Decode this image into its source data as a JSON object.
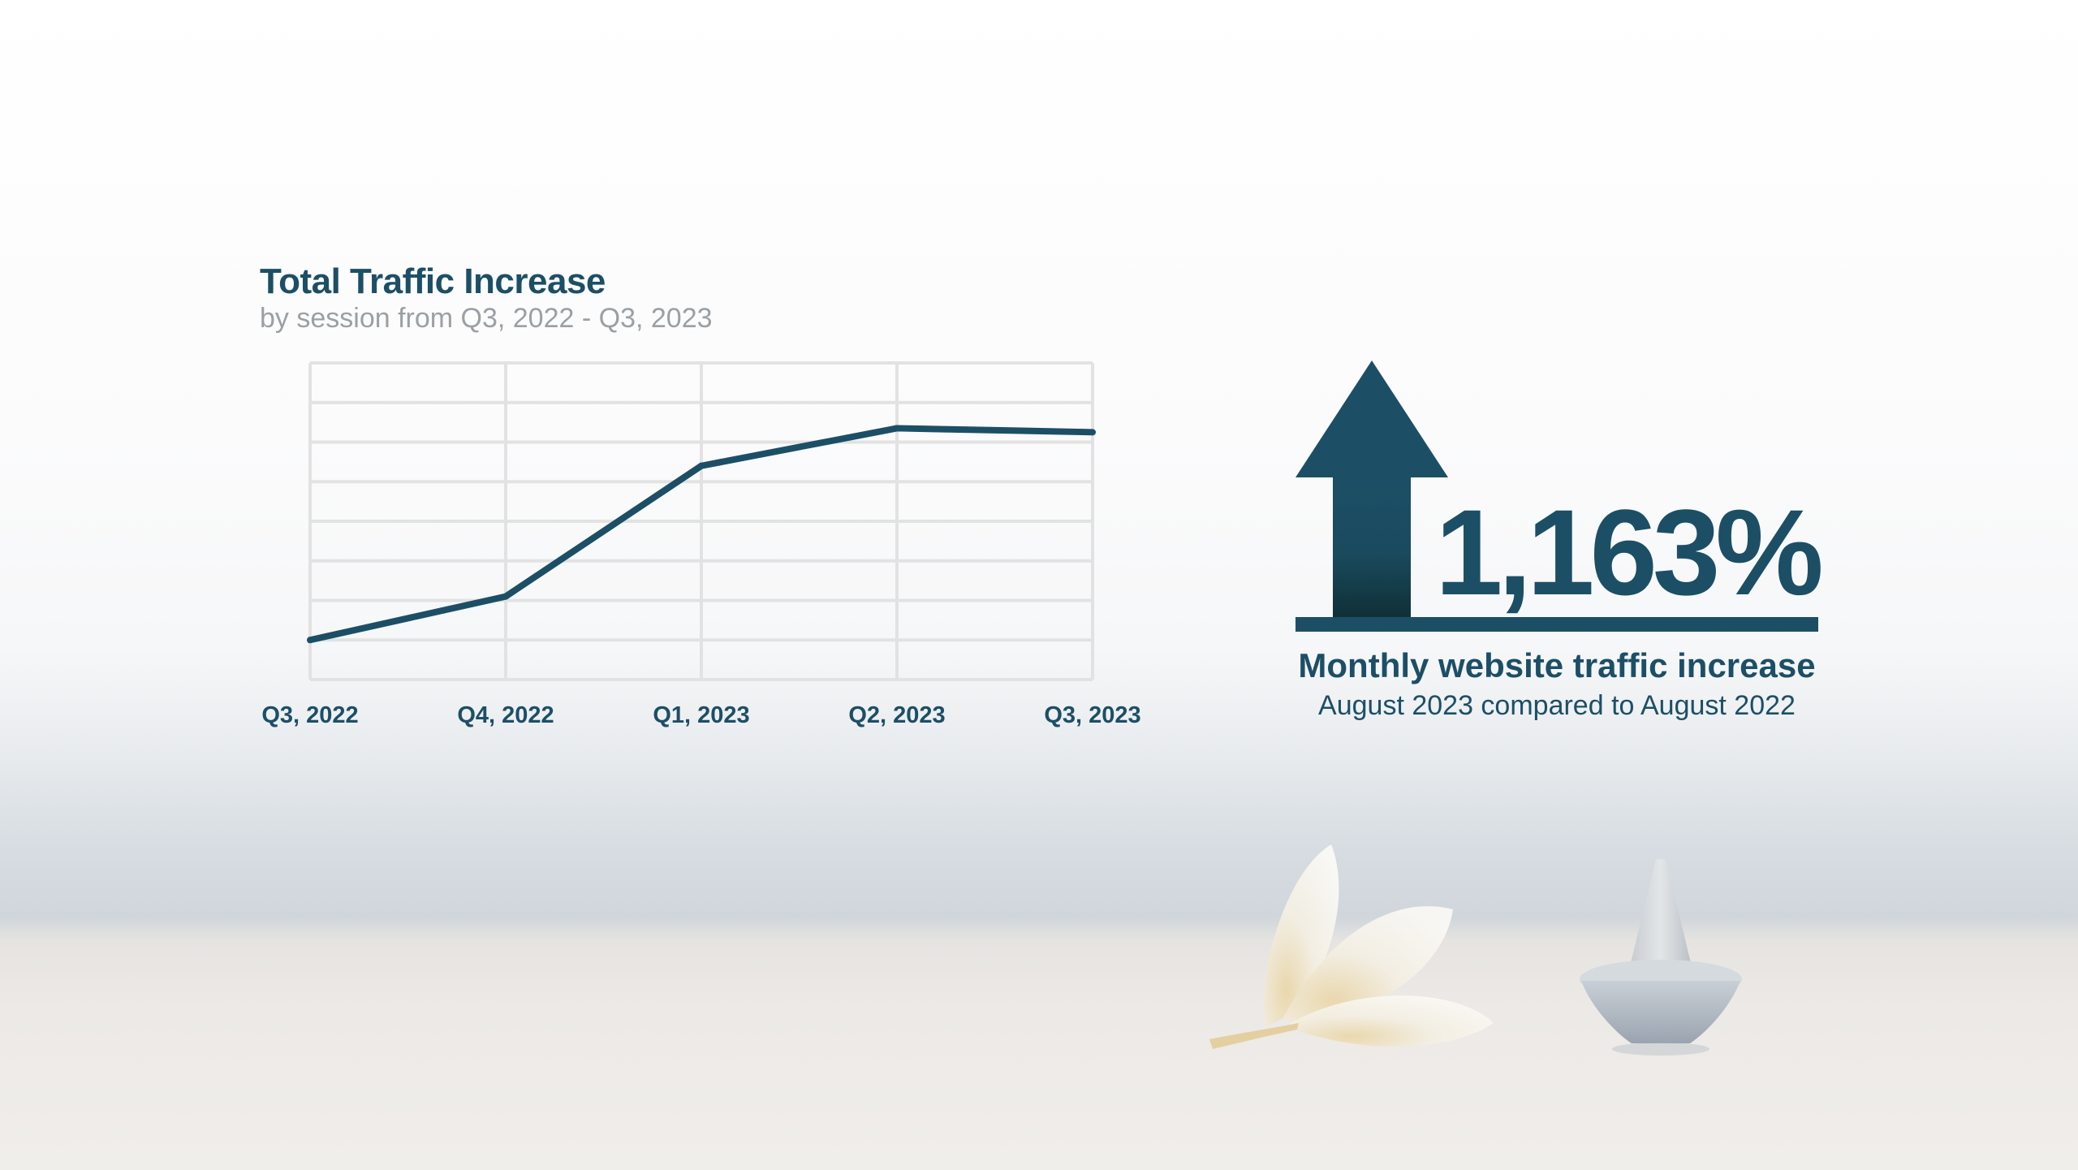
{
  "colors": {
    "primary": "#1c4f66",
    "subtitle": "#9aa0a4",
    "grid": "#e2e2e2"
  },
  "kpi": {
    "value": "1,163%",
    "label": "Monthly website traffic increase",
    "sublabel": "August 2023 compared to August 2022",
    "icon": "up-arrow-icon"
  },
  "chart_data": {
    "type": "line",
    "title": "Total Traffic Increase",
    "subtitle": "by session from Q3, 2022 - Q3, 2023",
    "categories": [
      "Q3, 2022",
      "Q4, 2022",
      "Q1, 2023",
      "Q2, 2023",
      "Q3, 2023"
    ],
    "values": [
      1.0,
      2.1,
      5.4,
      6.35,
      6.25
    ],
    "ylim": [
      0,
      8
    ],
    "y_ticks_labeled": false,
    "grid": true,
    "legend": "none"
  }
}
